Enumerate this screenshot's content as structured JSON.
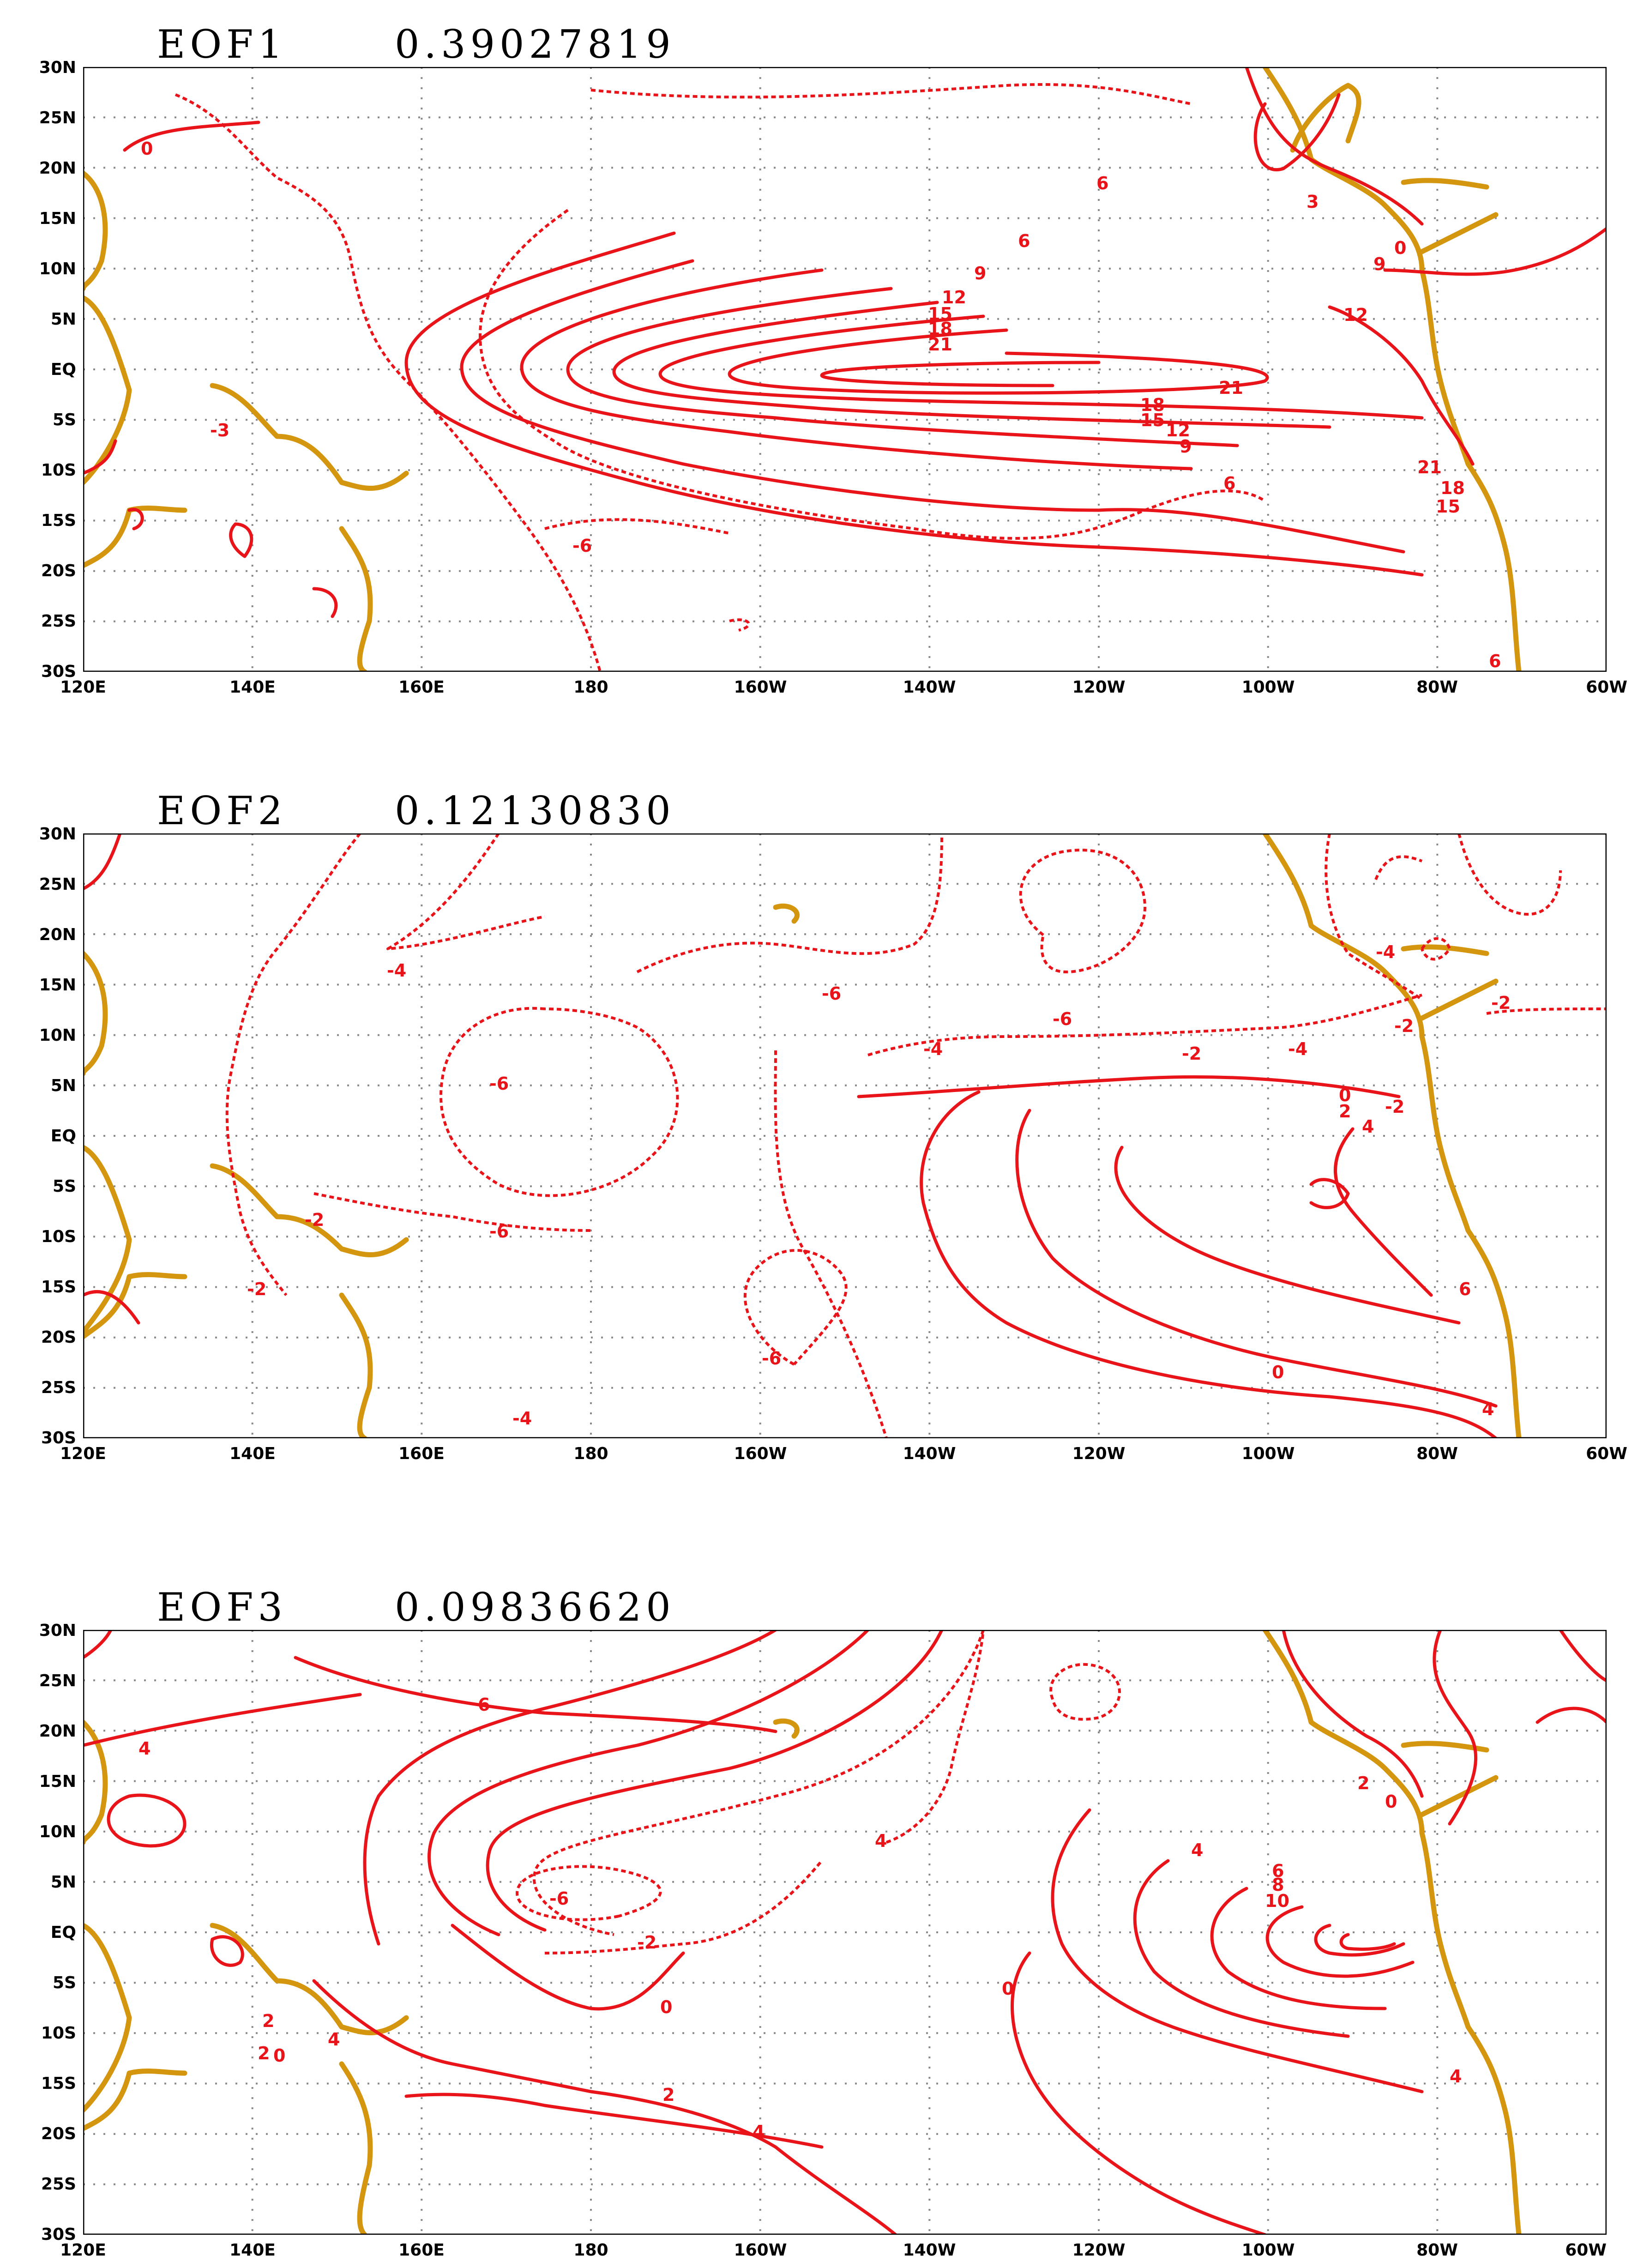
{
  "panels": [
    {
      "name": "EOF1",
      "variance": "0.39027819",
      "labels": [
        "0",
        "-3",
        "-6",
        "6",
        "9",
        "12",
        "15",
        "18",
        "21",
        "21",
        "18",
        "15",
        "12",
        "9",
        "6",
        "6",
        "3",
        "0",
        "9",
        "12",
        "21",
        "18",
        "15",
        "6"
      ]
    },
    {
      "name": "EOF2",
      "variance": "0.12130830",
      "labels": [
        "-4",
        "-6",
        "-6",
        "-6",
        "-4",
        "-2",
        "-2",
        "-2",
        "-6",
        "-6",
        "-4",
        "-2",
        "-4",
        "0",
        "2",
        "4",
        "-2",
        "-4",
        "-2",
        "0",
        "6",
        "4"
      ]
    },
    {
      "name": "EOF3",
      "variance": "0.09836620",
      "labels": [
        "6",
        "4",
        "4",
        "-6",
        "-2",
        "0",
        "2",
        "4",
        "0",
        "4",
        "6",
        "8",
        "10",
        "2",
        "0",
        "2",
        "2",
        "0",
        "4",
        "4"
      ]
    }
  ],
  "axes": {
    "lat_labels": [
      "30N",
      "25N",
      "20N",
      "15N",
      "10N",
      "5N",
      "EQ",
      "5S",
      "10S",
      "15S",
      "20S",
      "25S",
      "30S"
    ],
    "lon_labels": [
      "120E",
      "140E",
      "160E",
      "180",
      "160W",
      "140W",
      "120W",
      "100W",
      "80W",
      "60W"
    ]
  },
  "colors": {
    "contour": "#e8141a",
    "coastline": "#d4950f",
    "grid": "#8a8a8a"
  },
  "legend": {
    "positive_contours": "solid",
    "negative_contours": "dashed"
  }
}
